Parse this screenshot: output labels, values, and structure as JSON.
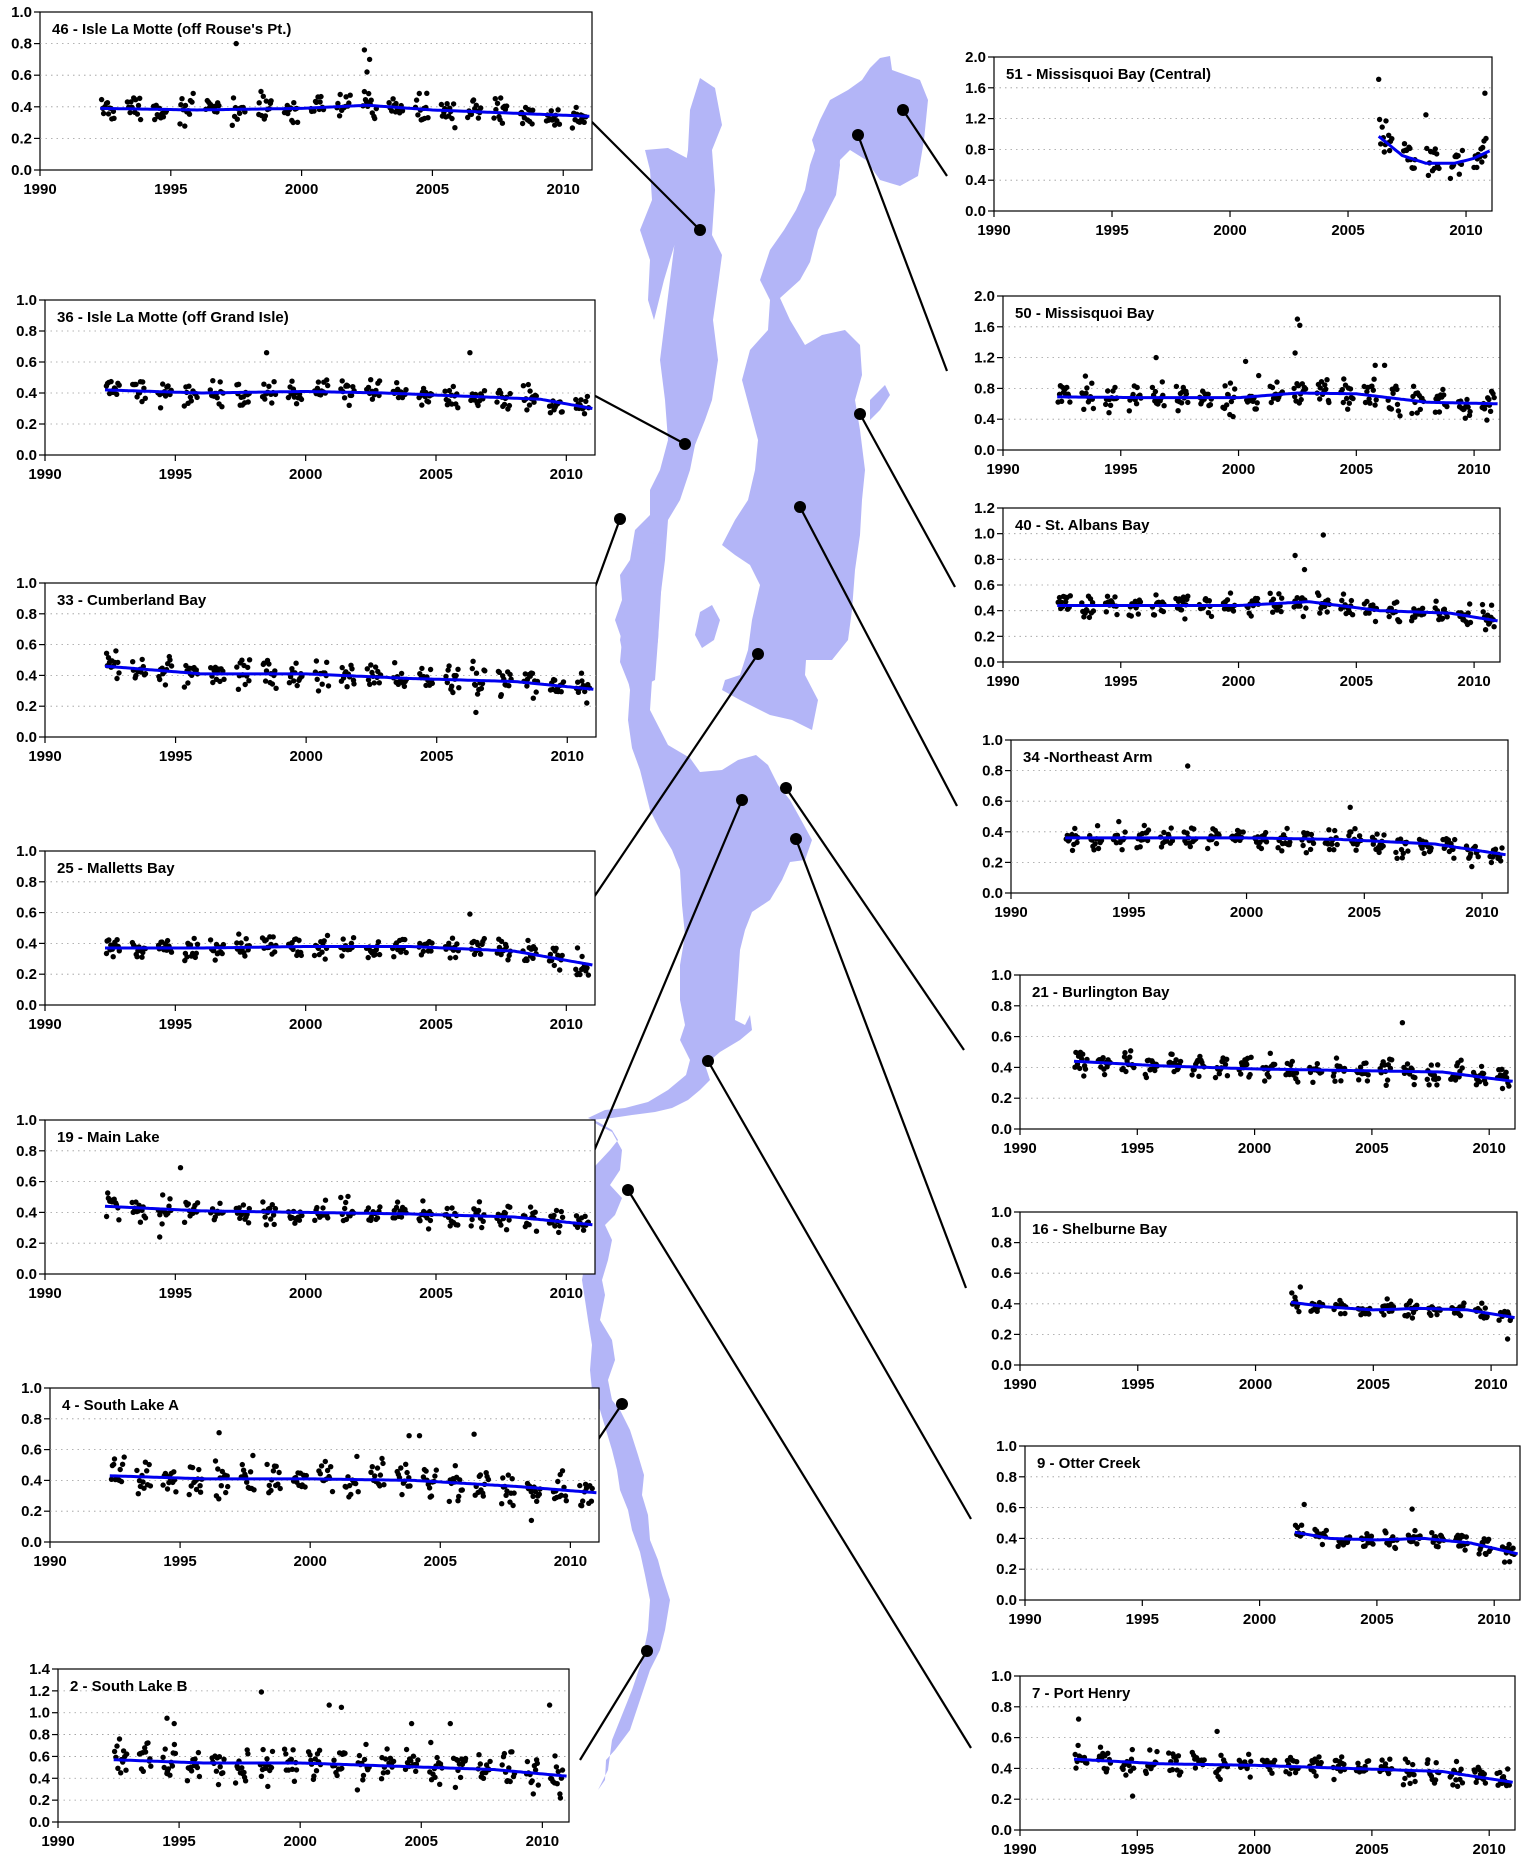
{
  "figure": {
    "lake_color": "#b3b5f7",
    "trend_color": "#0000ee",
    "point_color": "#000000",
    "x_ticks": [
      1990,
      1995,
      2000,
      2005,
      2010
    ]
  },
  "chart_data": [
    {
      "id": "46",
      "type": "scatter",
      "title": "46 - Isle La Motte (off Rouse's Pt.)",
      "xlim": [
        1990,
        2011.1
      ],
      "ylim": [
        0,
        1.0
      ],
      "yticks": [
        0.0,
        0.2,
        0.4,
        0.6,
        0.8,
        1.0
      ],
      "data_start": 1992.3,
      "base": 0.38,
      "spread": 0.08,
      "outliers": [
        [
          1997.5,
          0.8
        ],
        [
          2002.4,
          0.76
        ],
        [
          2002.6,
          0.7
        ],
        [
          2002.5,
          0.62
        ]
      ],
      "trend": {
        "x": [
          1992.3,
          1996,
          2000,
          2002.5,
          2005,
          2008,
          2011
        ],
        "y": [
          0.39,
          0.38,
          0.39,
          0.41,
          0.38,
          0.36,
          0.34
        ]
      }
    },
    {
      "id": "36",
      "type": "scatter",
      "title": "36 - Isle La Motte (off Grand Isle)",
      "xlim": [
        1990,
        2011.1
      ],
      "ylim": [
        0,
        1.0
      ],
      "yticks": [
        0.0,
        0.2,
        0.4,
        0.6,
        0.8,
        1.0
      ],
      "data_start": 1992.3,
      "base": 0.4,
      "spread": 0.08,
      "outliers": [
        [
          1998.5,
          0.66
        ],
        [
          2006.3,
          0.66
        ]
      ],
      "trend": {
        "x": [
          1992.3,
          1996,
          2000,
          2003,
          2006,
          2009,
          2011
        ],
        "y": [
          0.42,
          0.4,
          0.41,
          0.4,
          0.38,
          0.36,
          0.3
        ]
      }
    },
    {
      "id": "33",
      "type": "scatter",
      "title": "33 - Cumberland Bay",
      "xlim": [
        1990,
        2011.1
      ],
      "ylim": [
        0,
        1.0
      ],
      "yticks": [
        0.0,
        0.2,
        0.4,
        0.6,
        0.8,
        1.0
      ],
      "data_start": 1992.3,
      "base": 0.4,
      "spread": 0.09,
      "outliers": [
        [
          2006.5,
          0.16
        ]
      ],
      "trend": {
        "x": [
          1992.3,
          1996,
          2000,
          2004,
          2008,
          2011
        ],
        "y": [
          0.46,
          0.41,
          0.41,
          0.38,
          0.36,
          0.31
        ]
      }
    },
    {
      "id": "25",
      "type": "scatter",
      "title": "25 - Malletts Bay",
      "xlim": [
        1990,
        2011.1
      ],
      "ylim": [
        0,
        1.0
      ],
      "yticks": [
        0.0,
        0.2,
        0.4,
        0.6,
        0.8,
        1.0
      ],
      "data_start": 1992.3,
      "base": 0.37,
      "spread": 0.08,
      "outliers": [
        [
          2006.3,
          0.59
        ]
      ],
      "trend": {
        "x": [
          1992.3,
          1996,
          2000,
          2004,
          2008,
          2011
        ],
        "y": [
          0.37,
          0.37,
          0.38,
          0.38,
          0.35,
          0.26
        ]
      }
    },
    {
      "id": "19",
      "type": "scatter",
      "title": "19 - Main Lake",
      "xlim": [
        1990,
        2011.1
      ],
      "ylim": [
        0,
        1.0
      ],
      "yticks": [
        0.0,
        0.2,
        0.4,
        0.6,
        0.8,
        1.0
      ],
      "data_start": 1992.3,
      "base": 0.4,
      "spread": 0.08,
      "outliers": [
        [
          1995.2,
          0.69
        ],
        [
          1994.4,
          0.24
        ]
      ],
      "trend": {
        "x": [
          1992.3,
          1996,
          2000,
          2004,
          2008,
          2011
        ],
        "y": [
          0.44,
          0.41,
          0.4,
          0.39,
          0.37,
          0.32
        ]
      }
    },
    {
      "id": "4",
      "type": "scatter",
      "title": "4 - South Lake A",
      "xlim": [
        1990,
        2011.1
      ],
      "ylim": [
        0,
        1.0
      ],
      "yticks": [
        0.0,
        0.2,
        0.4,
        0.6,
        0.8,
        1.0
      ],
      "data_start": 1992.3,
      "base": 0.4,
      "spread": 0.11,
      "outliers": [
        [
          1996.5,
          0.71
        ],
        [
          2006.3,
          0.7
        ],
        [
          2003.8,
          0.69
        ],
        [
          2004.2,
          0.69
        ],
        [
          2008.5,
          0.14
        ]
      ],
      "trend": {
        "x": [
          1992.3,
          1996,
          2000,
          2004,
          2008,
          2011
        ],
        "y": [
          0.43,
          0.41,
          0.41,
          0.4,
          0.36,
          0.32
        ]
      }
    },
    {
      "id": "2",
      "type": "scatter",
      "title": "2 - South Lake B",
      "xlim": [
        1990,
        2011.1
      ],
      "ylim": [
        0,
        1.4
      ],
      "yticks": [
        0.0,
        0.2,
        0.4,
        0.6,
        0.8,
        1.0,
        1.2,
        1.4
      ],
      "data_start": 1992.3,
      "base": 0.52,
      "spread": 0.18,
      "outliers": [
        [
          1998.4,
          1.19
        ],
        [
          2010.3,
          1.07
        ],
        [
          2001.2,
          1.07
        ],
        [
          2001.7,
          1.05
        ],
        [
          1994.5,
          0.95
        ],
        [
          1994.8,
          0.9
        ],
        [
          2004.6,
          0.9
        ],
        [
          2006.2,
          0.9
        ]
      ],
      "trend": {
        "x": [
          1992.3,
          1996,
          2000,
          2004,
          2008,
          2011
        ],
        "y": [
          0.57,
          0.54,
          0.54,
          0.51,
          0.48,
          0.42
        ]
      }
    },
    {
      "id": "51",
      "type": "scatter",
      "title": "51 - Missisquoi Bay (Central)",
      "xlim": [
        1990,
        2011.1
      ],
      "ylim": [
        0,
        2.0
      ],
      "yticks": [
        0.0,
        0.4,
        0.8,
        1.2,
        1.6,
        2.0
      ],
      "data_start": 2006.3,
      "base": 0.7,
      "spread": 0.22,
      "outliers": [
        [
          2006.3,
          1.71
        ],
        [
          2010.8,
          1.53
        ],
        [
          2008.3,
          1.25
        ]
      ],
      "trend": {
        "x": [
          2006.3,
          2007.3,
          2008.3,
          2009.5,
          2010.3,
          2011
        ],
        "y": [
          0.97,
          0.72,
          0.62,
          0.62,
          0.68,
          0.78
        ]
      }
    },
    {
      "id": "50",
      "type": "scatter",
      "title": "50 - Missisquoi Bay",
      "xlim": [
        1990,
        2011.1
      ],
      "ylim": [
        0,
        2.0
      ],
      "yticks": [
        0.0,
        0.4,
        0.8,
        1.2,
        1.6,
        2.0
      ],
      "data_start": 1992.3,
      "base": 0.68,
      "spread": 0.2,
      "outliers": [
        [
          2002.5,
          1.7
        ],
        [
          2002.6,
          1.62
        ],
        [
          2002.4,
          1.26
        ],
        [
          1996.5,
          1.2
        ],
        [
          2000.3,
          1.15
        ],
        [
          2005.8,
          1.1
        ],
        [
          2006.2,
          1.1
        ]
      ],
      "trend": {
        "x": [
          1992.3,
          1996,
          2000,
          2002.5,
          2005,
          2008,
          2011
        ],
        "y": [
          0.69,
          0.68,
          0.68,
          0.74,
          0.73,
          0.62,
          0.6
        ]
      }
    },
    {
      "id": "40",
      "type": "scatter",
      "title": "40 - St. Albans Bay",
      "xlim": [
        1990,
        2011.1
      ],
      "ylim": [
        0,
        1.2
      ],
      "yticks": [
        0.0,
        0.2,
        0.4,
        0.6,
        0.8,
        1.0,
        1.2
      ],
      "data_start": 1992.3,
      "base": 0.42,
      "spread": 0.09,
      "outliers": [
        [
          2003.6,
          0.99
        ],
        [
          2002.4,
          0.83
        ],
        [
          2002.8,
          0.72
        ]
      ],
      "trend": {
        "x": [
          1992.3,
          1996,
          2000,
          2003,
          2006,
          2009,
          2011
        ],
        "y": [
          0.44,
          0.44,
          0.44,
          0.47,
          0.4,
          0.38,
          0.32
        ]
      }
    },
    {
      "id": "34",
      "type": "scatter",
      "title": "34 -Northeast Arm",
      "xlim": [
        1990,
        2011.1
      ],
      "ylim": [
        0,
        1.0
      ],
      "yticks": [
        0.0,
        0.2,
        0.4,
        0.6,
        0.8,
        1.0
      ],
      "data_start": 1992.3,
      "base": 0.35,
      "spread": 0.08,
      "outliers": [
        [
          1997.5,
          0.83
        ],
        [
          2004.4,
          0.56
        ]
      ],
      "trend": {
        "x": [
          1992.3,
          1996,
          2000,
          2004,
          2008,
          2011
        ],
        "y": [
          0.36,
          0.36,
          0.36,
          0.35,
          0.32,
          0.25
        ]
      }
    },
    {
      "id": "21",
      "type": "scatter",
      "title": "21 - Burlington Bay",
      "xlim": [
        1990,
        2011.1
      ],
      "ylim": [
        0,
        1.0
      ],
      "yticks": [
        0.0,
        0.2,
        0.4,
        0.6,
        0.8,
        1.0
      ],
      "data_start": 1992.3,
      "base": 0.39,
      "spread": 0.08,
      "outliers": [
        [
          2006.3,
          0.69
        ]
      ],
      "trend": {
        "x": [
          1992.3,
          1996,
          2000,
          2004,
          2008,
          2011
        ],
        "y": [
          0.44,
          0.41,
          0.39,
          0.38,
          0.37,
          0.31
        ]
      }
    },
    {
      "id": "16",
      "type": "scatter",
      "title": "16 - Shelburne Bay",
      "xlim": [
        1990,
        2011.1
      ],
      "ylim": [
        0,
        1.0
      ],
      "yticks": [
        0.0,
        0.2,
        0.4,
        0.6,
        0.8,
        1.0
      ],
      "data_start": 2001.5,
      "base": 0.37,
      "spread": 0.05,
      "outliers": [
        [
          2001.9,
          0.51
        ],
        [
          2010.7,
          0.17
        ]
      ],
      "trend": {
        "x": [
          2001.5,
          2003,
          2005,
          2007,
          2009,
          2011
        ],
        "y": [
          0.41,
          0.38,
          0.36,
          0.37,
          0.36,
          0.31
        ]
      }
    },
    {
      "id": "9",
      "type": "scatter",
      "title": "9 - Otter Creek",
      "xlim": [
        1990,
        2011.1
      ],
      "ylim": [
        0,
        1.0
      ],
      "yticks": [
        0.0,
        0.2,
        0.4,
        0.6,
        0.8,
        1.0
      ],
      "data_start": 2001.5,
      "base": 0.39,
      "spread": 0.06,
      "outliers": [
        [
          2001.9,
          0.62
        ],
        [
          2006.5,
          0.59
        ]
      ],
      "trend": {
        "x": [
          2001.5,
          2003,
          2005,
          2007,
          2009,
          2011
        ],
        "y": [
          0.44,
          0.4,
          0.39,
          0.4,
          0.37,
          0.3
        ]
      }
    },
    {
      "id": "7",
      "type": "scatter",
      "title": "7 - Port Henry",
      "xlim": [
        1990,
        2011.1
      ],
      "ylim": [
        0,
        1.0
      ],
      "yticks": [
        0.0,
        0.2,
        0.4,
        0.6,
        0.8,
        1.0
      ],
      "data_start": 1992.3,
      "base": 0.41,
      "spread": 0.08,
      "outliers": [
        [
          1992.5,
          0.72
        ],
        [
          1998.4,
          0.64
        ],
        [
          1994.8,
          0.22
        ]
      ],
      "trend": {
        "x": [
          1992.3,
          1996,
          2000,
          2004,
          2008,
          2011
        ],
        "y": [
          0.46,
          0.43,
          0.42,
          0.4,
          0.38,
          0.31
        ]
      }
    }
  ]
}
